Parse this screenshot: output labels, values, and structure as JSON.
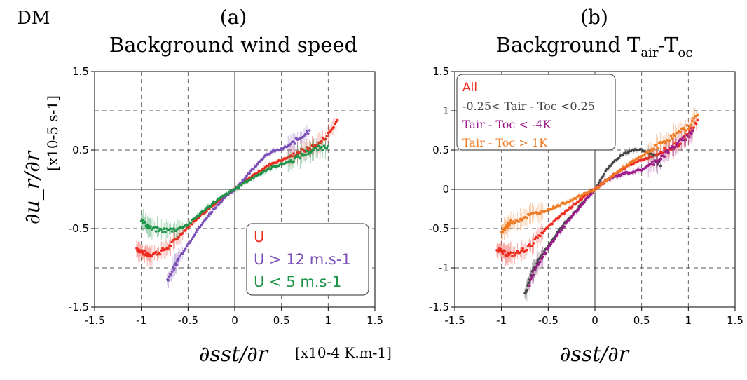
{
  "figure": {
    "tag": "DM",
    "ylabel_math": "∂u_r/∂r",
    "yunit": "[x10-5 s-1]",
    "xlabel_math": "∂sst/∂r",
    "xunit": "[x10-4 K.m-1]"
  },
  "chart_data": [
    {
      "type": "scatter",
      "panel": "(a)",
      "title": "Background wind speed",
      "xlim": [
        -1.5,
        1.5
      ],
      "ylim": [
        -1.5,
        1.5
      ],
      "xticks": [
        "-1.5",
        "-1",
        "-0.5",
        "0",
        "0.5",
        "1",
        "1.5"
      ],
      "yticks": [
        "1.5",
        "0.5",
        "-0.5",
        "-1.5"
      ],
      "grid": true,
      "legend": "bottom-right",
      "series": [
        {
          "name": "U",
          "color": "#ee2a1e",
          "x": [
            -1.05,
            -1.0,
            -0.95,
            -0.9,
            -0.8,
            -0.7,
            -0.6,
            -0.5,
            -0.4,
            -0.3,
            -0.2,
            -0.1,
            0.0,
            0.1,
            0.2,
            0.3,
            0.4,
            0.5,
            0.6,
            0.7,
            0.8,
            0.9,
            1.0,
            1.1
          ],
          "y": [
            -0.75,
            -0.8,
            -0.82,
            -0.83,
            -0.8,
            -0.73,
            -0.6,
            -0.48,
            -0.37,
            -0.27,
            -0.17,
            -0.08,
            0.0,
            0.09,
            0.18,
            0.26,
            0.33,
            0.37,
            0.42,
            0.48,
            0.52,
            0.58,
            0.7,
            0.88
          ]
        },
        {
          "name": "U > 12 m.s-1",
          "color": "#7b4fb8",
          "x": [
            -0.72,
            -0.65,
            -0.6,
            -0.5,
            -0.4,
            -0.3,
            -0.2,
            -0.1,
            0.0,
            0.1,
            0.2,
            0.3,
            0.4,
            0.5,
            0.6,
            0.7,
            0.8
          ],
          "y": [
            -1.15,
            -1.0,
            -0.88,
            -0.7,
            -0.52,
            -0.36,
            -0.22,
            -0.1,
            0.0,
            0.13,
            0.27,
            0.4,
            0.48,
            0.51,
            0.57,
            0.66,
            0.75
          ]
        },
        {
          "name": "U < 5 m.s-1",
          "color": "#1e9448",
          "x": [
            -1.0,
            -0.95,
            -0.9,
            -0.8,
            -0.7,
            -0.6,
            -0.5,
            -0.4,
            -0.3,
            -0.2,
            -0.1,
            0.0,
            0.1,
            0.2,
            0.3,
            0.4,
            0.5,
            0.6,
            0.7,
            0.8,
            0.9,
            1.0
          ],
          "y": [
            -0.38,
            -0.45,
            -0.5,
            -0.52,
            -0.52,
            -0.5,
            -0.45,
            -0.34,
            -0.24,
            -0.15,
            -0.07,
            0.0,
            0.08,
            0.15,
            0.22,
            0.28,
            0.32,
            0.36,
            0.42,
            0.48,
            0.52,
            0.55
          ]
        }
      ]
    },
    {
      "type": "scatter",
      "panel": "(b)",
      "title_base": "Background T",
      "title_sub1": "air",
      "title_mid": "-T",
      "title_sub2": "oc",
      "xlim": [
        -1.5,
        1.5
      ],
      "ylim": [
        -1.5,
        1.5
      ],
      "xticks": [
        "-1.5",
        "-1",
        "-0.5",
        "0",
        "0.5",
        "1",
        "1.5"
      ],
      "yticks": [
        "1.5",
        "1",
        "0.5",
        "0",
        "-0.5",
        "-1",
        "-1.5"
      ],
      "grid": true,
      "legend": "top-left",
      "series": [
        {
          "name": "All",
          "color": "#ee2a1e",
          "x": [
            -1.05,
            -1.0,
            -0.95,
            -0.9,
            -0.8,
            -0.7,
            -0.6,
            -0.5,
            -0.4,
            -0.3,
            -0.2,
            -0.1,
            0.0,
            0.1,
            0.2,
            0.3,
            0.4,
            0.5,
            0.6,
            0.7,
            0.8,
            0.9,
            1.0,
            1.1
          ],
          "y": [
            -0.75,
            -0.8,
            -0.82,
            -0.83,
            -0.8,
            -0.73,
            -0.6,
            -0.48,
            -0.37,
            -0.27,
            -0.17,
            -0.08,
            0.0,
            0.09,
            0.18,
            0.26,
            0.33,
            0.37,
            0.42,
            0.48,
            0.52,
            0.58,
            0.7,
            0.88
          ]
        },
        {
          "name": "-0.25< Tair - Toc <0.25",
          "color": "#444444",
          "x": [
            -0.75,
            -0.7,
            -0.65,
            -0.6,
            -0.5,
            -0.4,
            -0.3,
            -0.2,
            -0.1,
            0.0,
            0.1,
            0.2,
            0.3,
            0.4,
            0.5,
            0.6,
            0.7
          ],
          "y": [
            -1.35,
            -1.15,
            -1.0,
            -0.9,
            -0.72,
            -0.55,
            -0.4,
            -0.27,
            -0.13,
            0.0,
            0.2,
            0.35,
            0.45,
            0.5,
            0.5,
            0.45,
            0.3
          ]
        },
        {
          "name": "Tair - Toc < -4K",
          "color": "#9c1a8a",
          "x": [
            -0.7,
            -0.6,
            -0.5,
            -0.4,
            -0.3,
            -0.2,
            -0.1,
            0.0,
            0.1,
            0.2,
            0.3,
            0.4,
            0.5,
            0.6,
            0.7,
            0.8,
            0.9,
            1.0,
            1.05
          ],
          "y": [
            -1.2,
            -0.95,
            -0.75,
            -0.58,
            -0.42,
            -0.28,
            -0.14,
            0.0,
            0.1,
            0.15,
            0.2,
            0.22,
            0.25,
            0.32,
            0.4,
            0.5,
            0.6,
            0.68,
            0.75
          ]
        },
        {
          "name": "Tair - Toc > 1K",
          "color": "#f07a22",
          "x": [
            -1.0,
            -0.95,
            -0.9,
            -0.8,
            -0.7,
            -0.6,
            -0.5,
            -0.4,
            -0.3,
            -0.2,
            -0.1,
            0.0,
            0.1,
            0.2,
            0.3,
            0.4,
            0.5,
            0.6,
            0.7,
            0.8,
            0.9,
            1.0,
            1.1
          ],
          "y": [
            -0.55,
            -0.48,
            -0.42,
            -0.38,
            -0.33,
            -0.3,
            -0.26,
            -0.21,
            -0.16,
            -0.11,
            -0.05,
            0.0,
            0.09,
            0.18,
            0.27,
            0.35,
            0.42,
            0.5,
            0.58,
            0.65,
            0.72,
            0.8,
            0.95
          ]
        }
      ]
    }
  ]
}
